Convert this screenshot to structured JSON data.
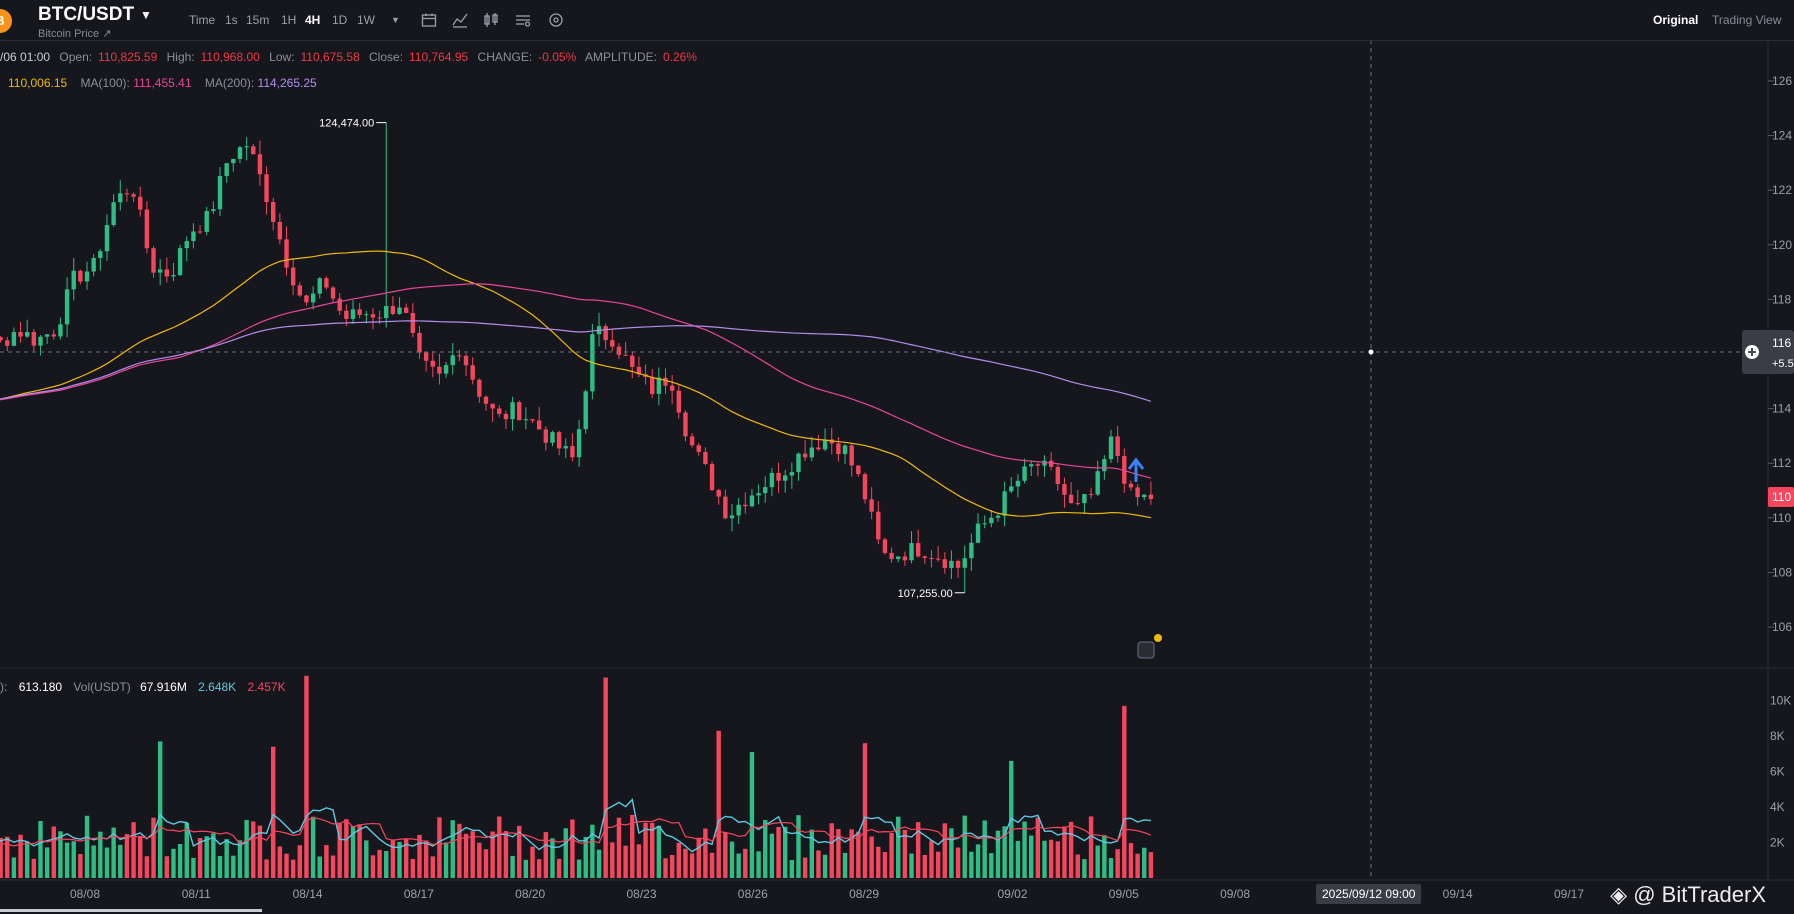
{
  "header": {
    "logo": "B",
    "pair": "BTC/USDT",
    "subtitle": "Bitcoin Price ↗",
    "timeframes": [
      "Time",
      "1s",
      "15m",
      "1H",
      "4H",
      "1D",
      "1W"
    ],
    "active_timeframe": "4H",
    "view_original": "Original",
    "view_trading": "Trading View"
  },
  "ohlc": {
    "date": "/06 01:00",
    "open_label": "Open:",
    "open": "110,825.59",
    "high_label": "High:",
    "high": "110,968.00",
    "low_label": "Low:",
    "low": "110,675.58",
    "close_label": "Close:",
    "close": "110,764.95",
    "change_label": "CHANGE:",
    "change": "-0.05%",
    "amplitude_label": "AMPLITUDE:",
    "amplitude": "0.26%"
  },
  "ma": {
    "ma50_value": "110,006.15",
    "ma100_label": "MA(100):",
    "ma100_value": "111,455.41",
    "ma200_label": "MA(200):",
    "ma200_value": "114,265.25"
  },
  "volume": {
    "prefix": "):",
    "value": "613.180",
    "usdt_label": "Vol(USDT)",
    "usdt_value": "67.916M",
    "green_value": "2.648K",
    "red_value": "2.457K"
  },
  "crosshair_date": "2025/09/12 09:00",
  "current_price_tag": "110",
  "crosshair_price": "116",
  "crosshair_change": "+5.5",
  "watermark": "@ BitTraderX",
  "colors": {
    "bg": "#16171d",
    "up": "#2ebd85",
    "down": "#f6465d",
    "ma50": "#f0b90b",
    "ma100": "#e8469a",
    "ma200": "#b48cf0",
    "vol_ma": "#5ec8e0",
    "grid": "#22242b",
    "text": "#9aa0ab"
  },
  "chart_data": {
    "type": "candlestick",
    "timeframe": "4H",
    "x_ticks": [
      "08/08",
      "08/11",
      "08/14",
      "08/17",
      "08/20",
      "08/23",
      "08/26",
      "08/29",
      "09/02",
      "09/05",
      "09/08",
      "09/14",
      "09/17"
    ],
    "price_ticks": [
      "106",
      "108",
      "110",
      "112",
      "114",
      "116",
      "118",
      "120",
      "122",
      "124",
      "126"
    ],
    "price_tick_values": [
      106000,
      108000,
      110000,
      112000,
      114000,
      116000,
      118000,
      120000,
      122000,
      124000,
      126000
    ],
    "ylim": [
      104500,
      127500
    ],
    "high_annotation": "124,474.00",
    "low_annotation": "107,255.00",
    "high_point": {
      "date": "08/14",
      "value": 124474
    },
    "low_point": {
      "date": "09/01",
      "value": 107255
    },
    "close_path": [
      [
        "08/06",
        114900
      ],
      [
        "08/06",
        114300
      ],
      [
        "08/07",
        115700
      ],
      [
        "08/07",
        116900
      ],
      [
        "08/08",
        116300
      ],
      [
        "08/08",
        116900
      ],
      [
        "08/09",
        116500
      ],
      [
        "08/09",
        116900
      ],
      [
        "08/10",
        118800
      ],
      [
        "08/10",
        119200
      ],
      [
        "08/11",
        121500
      ],
      [
        "08/11",
        122200
      ],
      [
        "08/12",
        119200
      ],
      [
        "08/12",
        118900
      ],
      [
        "08/13",
        120500
      ],
      [
        "08/13",
        121000
      ],
      [
        "08/14",
        123200
      ],
      [
        "08/14",
        123700
      ],
      [
        "08/14",
        121800
      ],
      [
        "08/14",
        119500
      ],
      [
        "08/15",
        117700
      ],
      [
        "08/15",
        118700
      ],
      [
        "08/16",
        117300
      ],
      [
        "08/16",
        117500
      ],
      [
        "08/17",
        117500
      ],
      [
        "08/17",
        117900
      ],
      [
        "08/18",
        115600
      ],
      [
        "08/18",
        115100
      ],
      [
        "08/19",
        116300
      ],
      [
        "08/19",
        114700
      ],
      [
        "08/20",
        113600
      ],
      [
        "08/20",
        114000
      ],
      [
        "08/21",
        113400
      ],
      [
        "08/21",
        112700
      ],
      [
        "08/22",
        112100
      ],
      [
        "08/22",
        116800
      ],
      [
        "08/23",
        116600
      ],
      [
        "08/23",
        115400
      ],
      [
        "08/24",
        114700
      ],
      [
        "08/24",
        115200
      ],
      [
        "08/25",
        112800
      ],
      [
        "08/25",
        111500
      ],
      [
        "08/26",
        110100
      ],
      [
        "08/26",
        110800
      ],
      [
        "08/27",
        111300
      ],
      [
        "08/27",
        111800
      ],
      [
        "08/28",
        112500
      ],
      [
        "08/28",
        112900
      ],
      [
        "08/29",
        112600
      ],
      [
        "08/29",
        111100
      ],
      [
        "08/30",
        108600
      ],
      [
        "08/30",
        108700
      ],
      [
        "08/31",
        108900
      ],
      [
        "08/31",
        108600
      ],
      [
        "09/01",
        108200
      ],
      [
        "09/01",
        109500
      ],
      [
        "09/02",
        110300
      ],
      [
        "09/02",
        111300
      ],
      [
        "09/03",
        112000
      ],
      [
        "09/03",
        111500
      ],
      [
        "09/04",
        110200
      ],
      [
        "09/04",
        110900
      ],
      [
        "09/05",
        112900
      ],
      [
        "09/05",
        110700
      ],
      [
        "09/06",
        110765
      ]
    ],
    "ma50": {
      "name": "MA(50)",
      "last": 110006.15
    },
    "ma100": {
      "name": "MA(100)",
      "last": 111455.41
    },
    "ma200": {
      "name": "MA(200)",
      "last": 114265.25
    },
    "volume_ticks": [
      "2K",
      "4K",
      "6K",
      "8K",
      "10K"
    ],
    "volume_tick_values": [
      2000,
      4000,
      6000,
      8000,
      10000
    ],
    "volume_ylim": [
      0,
      11500
    ],
    "volume_spikes": [
      {
        "date": "08/10",
        "value": 7700
      },
      {
        "date": "08/13",
        "value": 7400
      },
      {
        "date": "08/14",
        "value": 11400
      },
      {
        "date": "08/22",
        "value": 11300
      },
      {
        "date": "08/25",
        "value": 8300
      },
      {
        "date": "08/26",
        "value": 7100
      },
      {
        "date": "08/29",
        "value": 7600
      },
      {
        "date": "09/02",
        "value": 6600
      },
      {
        "date": "09/05",
        "value": 9700
      }
    ]
  }
}
